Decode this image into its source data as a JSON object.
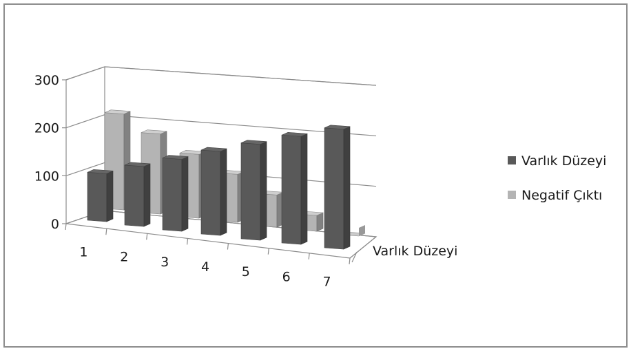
{
  "chart_data": {
    "type": "bar",
    "categories": [
      "1",
      "2",
      "3",
      "4",
      "5",
      "6",
      "7"
    ],
    "series": [
      {
        "name": "Varlık Düzeyi",
        "values": [
          100,
          125,
          150,
          175,
          200,
          225,
          250
        ],
        "color": "#595959"
      },
      {
        "name": "Negatif Çıktı",
        "values": [
          200,
          167,
          133,
          100,
          67,
          33,
          0
        ],
        "color": "#b4b4b4"
      }
    ],
    "depth_axis_label": "Varlık Düzeyi",
    "y_ticks": [
      "0",
      "100",
      "200",
      "300"
    ],
    "ylim": [
      0,
      300
    ],
    "grid": true,
    "legend_position": "right",
    "three_d": true
  }
}
